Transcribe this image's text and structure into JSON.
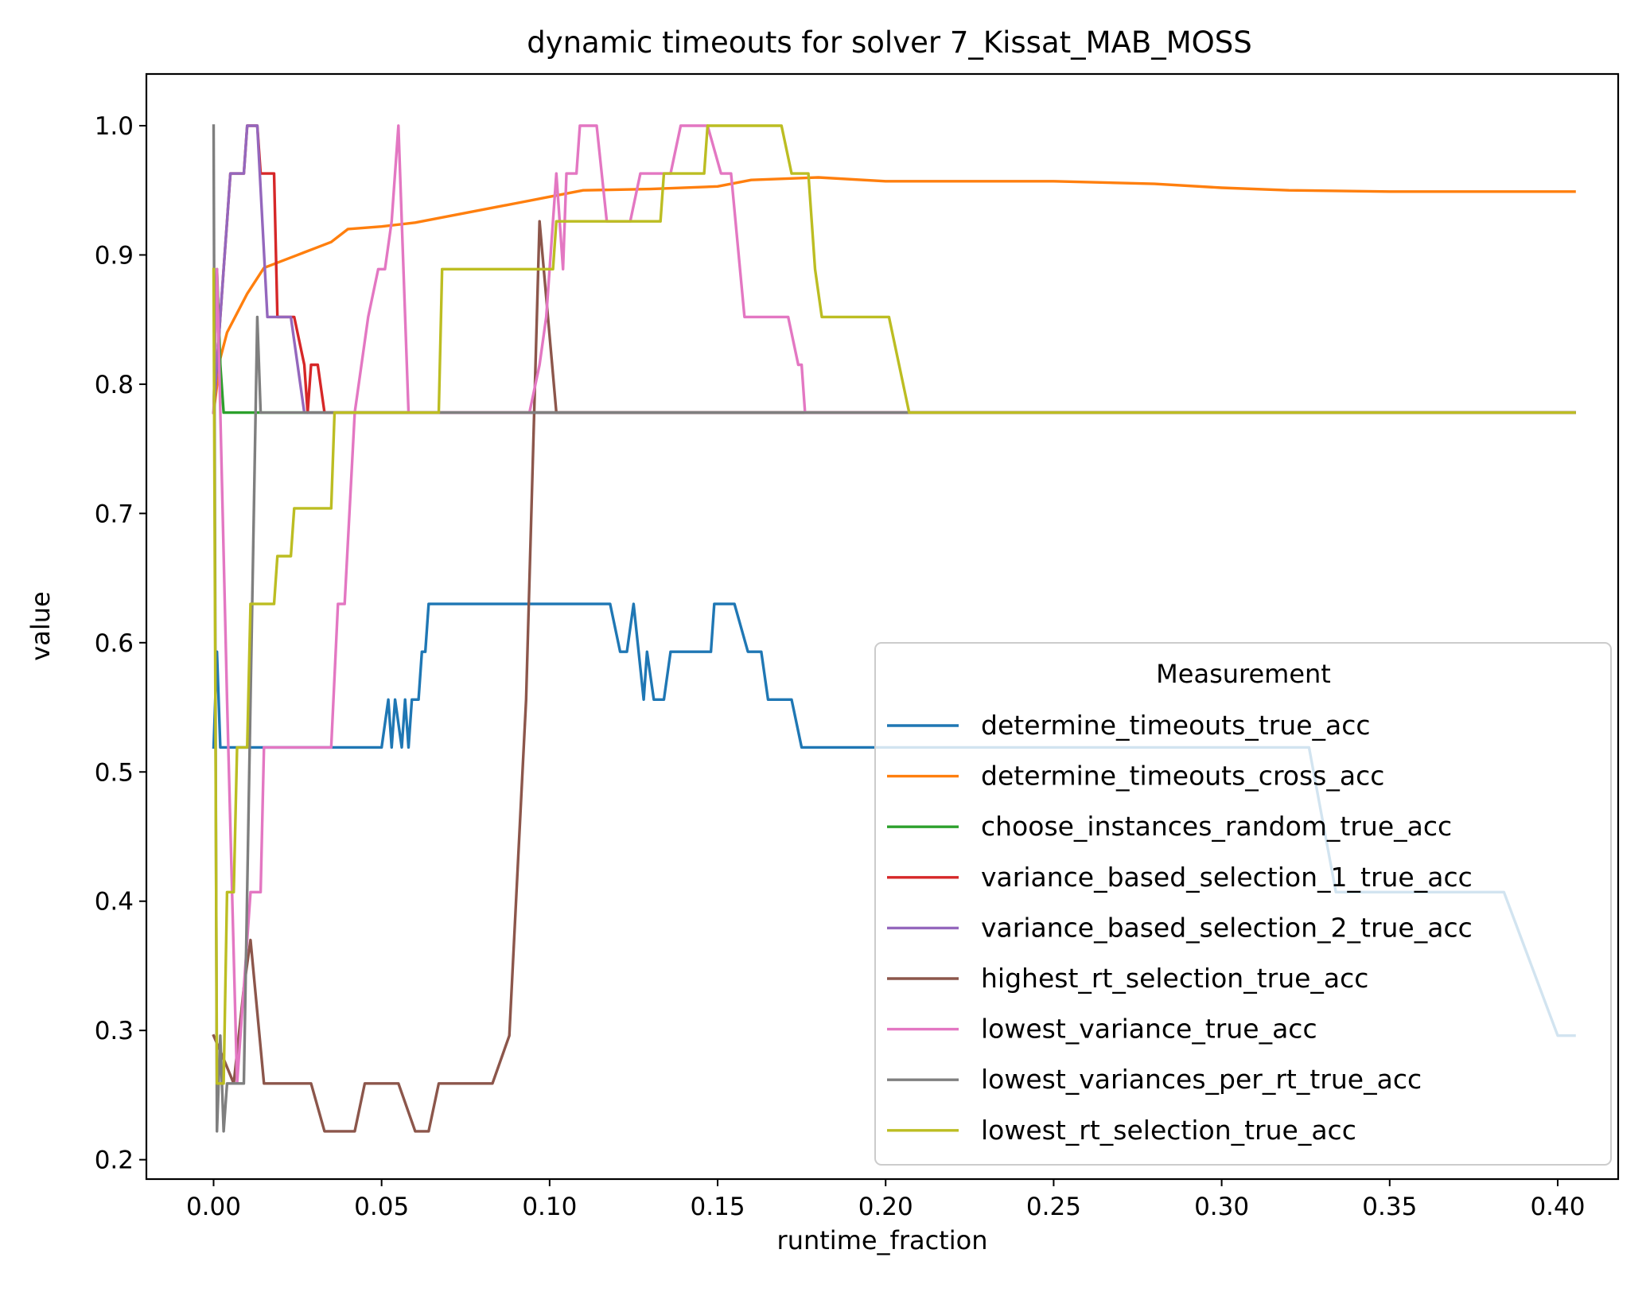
{
  "chart_data": {
    "type": "line",
    "title": "dynamic timeouts for solver 7_Kissat_MAB_MOSS",
    "xlabel": "runtime_fraction",
    "ylabel": "value",
    "xlim": [
      -0.02,
      0.418
    ],
    "ylim": [
      0.185,
      1.04
    ],
    "x_ticks": [
      0.0,
      0.05,
      0.1,
      0.15,
      0.2,
      0.25,
      0.3,
      0.35,
      0.4
    ],
    "x_tick_labels": [
      "0.00",
      "0.05",
      "0.10",
      "0.15",
      "0.20",
      "0.25",
      "0.30",
      "0.35",
      "0.40"
    ],
    "y_ticks": [
      0.2,
      0.3,
      0.4,
      0.5,
      0.6,
      0.7,
      0.8,
      0.9,
      1.0
    ],
    "y_tick_labels": [
      "0.2",
      "0.3",
      "0.4",
      "0.5",
      "0.6",
      "0.7",
      "0.8",
      "0.9",
      "1.0"
    ],
    "grid": false,
    "legend": {
      "title": "Measurement",
      "placement": "lower-right"
    },
    "series": [
      {
        "name": "determine_timeouts_true_acc",
        "color": "#1f77b4",
        "points": [
          [
            0.0,
            0.519
          ],
          [
            0.001,
            0.593
          ],
          [
            0.002,
            0.519
          ],
          [
            0.05,
            0.519
          ],
          [
            0.052,
            0.556
          ],
          [
            0.053,
            0.519
          ],
          [
            0.054,
            0.556
          ],
          [
            0.056,
            0.519
          ],
          [
            0.057,
            0.556
          ],
          [
            0.058,
            0.519
          ],
          [
            0.059,
            0.556
          ],
          [
            0.061,
            0.556
          ],
          [
            0.062,
            0.593
          ],
          [
            0.063,
            0.593
          ],
          [
            0.064,
            0.63
          ],
          [
            0.118,
            0.63
          ],
          [
            0.121,
            0.593
          ],
          [
            0.123,
            0.593
          ],
          [
            0.125,
            0.63
          ],
          [
            0.128,
            0.556
          ],
          [
            0.129,
            0.593
          ],
          [
            0.131,
            0.556
          ],
          [
            0.134,
            0.556
          ],
          [
            0.136,
            0.593
          ],
          [
            0.148,
            0.593
          ],
          [
            0.149,
            0.63
          ],
          [
            0.155,
            0.63
          ],
          [
            0.159,
            0.593
          ],
          [
            0.163,
            0.593
          ],
          [
            0.165,
            0.556
          ],
          [
            0.172,
            0.556
          ],
          [
            0.175,
            0.519
          ],
          [
            0.326,
            0.519
          ],
          [
            0.334,
            0.407
          ],
          [
            0.384,
            0.407
          ],
          [
            0.4,
            0.296
          ],
          [
            0.405,
            0.296
          ]
        ]
      },
      {
        "name": "determine_timeouts_cross_acc",
        "color": "#ff7f0e",
        "points": [
          [
            0.0,
            0.778
          ],
          [
            0.002,
            0.82
          ],
          [
            0.004,
            0.84
          ],
          [
            0.006,
            0.85
          ],
          [
            0.01,
            0.87
          ],
          [
            0.015,
            0.89
          ],
          [
            0.02,
            0.895
          ],
          [
            0.025,
            0.9
          ],
          [
            0.03,
            0.905
          ],
          [
            0.035,
            0.91
          ],
          [
            0.04,
            0.92
          ],
          [
            0.05,
            0.922
          ],
          [
            0.06,
            0.925
          ],
          [
            0.07,
            0.93
          ],
          [
            0.08,
            0.935
          ],
          [
            0.09,
            0.94
          ],
          [
            0.1,
            0.945
          ],
          [
            0.11,
            0.95
          ],
          [
            0.13,
            0.951
          ],
          [
            0.15,
            0.953
          ],
          [
            0.16,
            0.958
          ],
          [
            0.18,
            0.96
          ],
          [
            0.2,
            0.957
          ],
          [
            0.22,
            0.957
          ],
          [
            0.25,
            0.957
          ],
          [
            0.28,
            0.955
          ],
          [
            0.3,
            0.952
          ],
          [
            0.32,
            0.95
          ],
          [
            0.35,
            0.949
          ],
          [
            0.405,
            0.949
          ]
        ]
      },
      {
        "name": "choose_instances_random_true_acc",
        "color": "#2ca02c",
        "points": [
          [
            0.0,
            0.778
          ],
          [
            0.001,
            0.889
          ],
          [
            0.002,
            0.815
          ],
          [
            0.003,
            0.778
          ],
          [
            0.405,
            0.778
          ]
        ]
      },
      {
        "name": "variance_based_selection_1_true_acc",
        "color": "#d62728",
        "points": [
          [
            0.0,
            0.778
          ],
          [
            0.003,
            0.889
          ],
          [
            0.004,
            0.926
          ],
          [
            0.005,
            0.963
          ],
          [
            0.009,
            0.963
          ],
          [
            0.01,
            1.0
          ],
          [
            0.013,
            1.0
          ],
          [
            0.014,
            0.963
          ],
          [
            0.018,
            0.963
          ],
          [
            0.019,
            0.852
          ],
          [
            0.024,
            0.852
          ],
          [
            0.027,
            0.815
          ],
          [
            0.028,
            0.778
          ],
          [
            0.029,
            0.815
          ],
          [
            0.031,
            0.815
          ],
          [
            0.033,
            0.778
          ],
          [
            0.405,
            0.778
          ]
        ]
      },
      {
        "name": "variance_based_selection_2_true_acc",
        "color": "#9467bd",
        "points": [
          [
            0.0,
            0.778
          ],
          [
            0.003,
            0.889
          ],
          [
            0.004,
            0.926
          ],
          [
            0.005,
            0.963
          ],
          [
            0.009,
            0.963
          ],
          [
            0.01,
            1.0
          ],
          [
            0.013,
            1.0
          ],
          [
            0.016,
            0.852
          ],
          [
            0.023,
            0.852
          ],
          [
            0.027,
            0.778
          ],
          [
            0.405,
            0.778
          ]
        ]
      },
      {
        "name": "highest_rt_selection_true_acc",
        "color": "#8c564b",
        "points": [
          [
            0.0,
            0.296
          ],
          [
            0.003,
            0.278
          ],
          [
            0.006,
            0.259
          ],
          [
            0.009,
            0.333
          ],
          [
            0.011,
            0.37
          ],
          [
            0.015,
            0.259
          ],
          [
            0.029,
            0.259
          ],
          [
            0.033,
            0.222
          ],
          [
            0.042,
            0.222
          ],
          [
            0.045,
            0.259
          ],
          [
            0.055,
            0.259
          ],
          [
            0.06,
            0.222
          ],
          [
            0.064,
            0.222
          ],
          [
            0.067,
            0.259
          ],
          [
            0.083,
            0.259
          ],
          [
            0.088,
            0.296
          ],
          [
            0.093,
            0.556
          ],
          [
            0.097,
            0.926
          ],
          [
            0.102,
            0.778
          ],
          [
            0.405,
            0.778
          ]
        ]
      },
      {
        "name": "lowest_variance_true_acc",
        "color": "#e377c2",
        "points": [
          [
            0.0,
            0.778
          ],
          [
            0.001,
            0.889
          ],
          [
            0.004,
            0.556
          ],
          [
            0.007,
            0.259
          ],
          [
            0.01,
            0.37
          ],
          [
            0.011,
            0.407
          ],
          [
            0.014,
            0.407
          ],
          [
            0.015,
            0.519
          ],
          [
            0.035,
            0.519
          ],
          [
            0.037,
            0.63
          ],
          [
            0.039,
            0.63
          ],
          [
            0.042,
            0.778
          ],
          [
            0.046,
            0.852
          ],
          [
            0.049,
            0.889
          ],
          [
            0.051,
            0.889
          ],
          [
            0.053,
            0.926
          ],
          [
            0.055,
            1.0
          ],
          [
            0.056,
            0.926
          ],
          [
            0.058,
            0.778
          ],
          [
            0.094,
            0.778
          ],
          [
            0.097,
            0.815
          ],
          [
            0.099,
            0.852
          ],
          [
            0.102,
            0.963
          ],
          [
            0.103,
            0.926
          ],
          [
            0.104,
            0.889
          ],
          [
            0.105,
            0.963
          ],
          [
            0.108,
            0.963
          ],
          [
            0.109,
            1.0
          ],
          [
            0.114,
            1.0
          ],
          [
            0.117,
            0.926
          ],
          [
            0.124,
            0.926
          ],
          [
            0.127,
            0.963
          ],
          [
            0.136,
            0.963
          ],
          [
            0.139,
            1.0
          ],
          [
            0.147,
            1.0
          ],
          [
            0.151,
            0.963
          ],
          [
            0.154,
            0.963
          ],
          [
            0.158,
            0.852
          ],
          [
            0.171,
            0.852
          ],
          [
            0.174,
            0.815
          ],
          [
            0.175,
            0.815
          ],
          [
            0.176,
            0.778
          ],
          [
            0.405,
            0.778
          ]
        ]
      },
      {
        "name": "lowest_variances_per_rt_true_acc",
        "color": "#7f7f7f",
        "points": [
          [
            0.0,
            1.0
          ],
          [
            0.001,
            0.222
          ],
          [
            0.002,
            0.296
          ],
          [
            0.003,
            0.222
          ],
          [
            0.004,
            0.259
          ],
          [
            0.009,
            0.259
          ],
          [
            0.011,
            0.556
          ],
          [
            0.013,
            0.852
          ],
          [
            0.014,
            0.778
          ],
          [
            0.405,
            0.778
          ]
        ]
      },
      {
        "name": "lowest_rt_selection_true_acc",
        "color": "#bcbd22",
        "points": [
          [
            0.0,
            0.889
          ],
          [
            0.001,
            0.259
          ],
          [
            0.003,
            0.259
          ],
          [
            0.004,
            0.407
          ],
          [
            0.006,
            0.407
          ],
          [
            0.007,
            0.519
          ],
          [
            0.01,
            0.519
          ],
          [
            0.011,
            0.63
          ],
          [
            0.018,
            0.63
          ],
          [
            0.019,
            0.667
          ],
          [
            0.023,
            0.667
          ],
          [
            0.024,
            0.704
          ],
          [
            0.035,
            0.704
          ],
          [
            0.036,
            0.778
          ],
          [
            0.067,
            0.778
          ],
          [
            0.068,
            0.889
          ],
          [
            0.101,
            0.889
          ],
          [
            0.102,
            0.926
          ],
          [
            0.133,
            0.926
          ],
          [
            0.134,
            0.963
          ],
          [
            0.146,
            0.963
          ],
          [
            0.147,
            1.0
          ],
          [
            0.169,
            1.0
          ],
          [
            0.172,
            0.963
          ],
          [
            0.177,
            0.963
          ],
          [
            0.179,
            0.889
          ],
          [
            0.181,
            0.852
          ],
          [
            0.201,
            0.852
          ],
          [
            0.204,
            0.815
          ],
          [
            0.207,
            0.778
          ],
          [
            0.405,
            0.778
          ]
        ]
      }
    ]
  }
}
